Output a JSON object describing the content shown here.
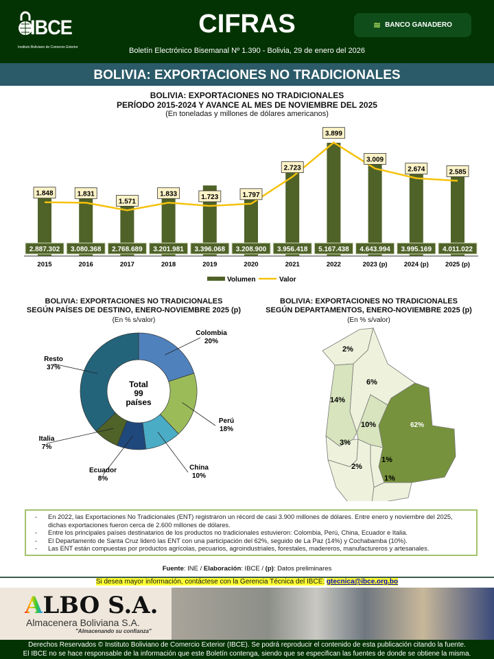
{
  "header": {
    "logo_text": "IBCE",
    "logo_subtitle": "Instituto Boliviano de Comercio Exterior",
    "title": "CIFRAS",
    "sponsor": "BANCO GANADERO",
    "bulletin": "Boletín Electrónico Bisemanal Nº 1.390 - Bolivia, 29 de enero del 2026"
  },
  "band_title": "BOLIVIA: EXPORTACIONES NO TRADICIONALES",
  "chart_data": [
    {
      "type": "bar+line",
      "title": "BOLIVIA: EXPORTACIONES NO TRADICIONALES",
      "subtitle": "PERÍODO 2015-2024 Y AVANCE AL MES DE NOVIEMBRE DEL 2025",
      "units": "(En toneladas y millones de dólares americanos)",
      "categories": [
        "2015",
        "2016",
        "2017",
        "2018",
        "2019",
        "2020",
        "2021",
        "2022",
        "2023 (p)",
        "2024 (p)",
        "2025 (p)"
      ],
      "series": [
        {
          "name": "Volumen",
          "type": "bar",
          "color": "#4f6228",
          "values": [
            2887302,
            3080368,
            2768689,
            3201981,
            3396068,
            3208900,
            3956418,
            5167438,
            4643994,
            3995169,
            4011022
          ],
          "labels": [
            "2.887.302",
            "3.080.368",
            "2.768.689",
            "3.201.981",
            "3.396.068",
            "3.208.900",
            "3.956.418",
            "5.167.438",
            "4.643.994",
            "3.995.169",
            "4.011.022"
          ]
        },
        {
          "name": "Valor",
          "type": "line",
          "color": "#f5c20c",
          "values": [
            1848,
            1831,
            1571,
            1833,
            1723,
            1797,
            2723,
            3899,
            3009,
            2674,
            2585
          ],
          "labels": [
            "1.848",
            "1.831",
            "1.571",
            "1.833",
            "1.723",
            "1.797",
            "2.723",
            "3.899",
            "3.009",
            "2.674",
            "2.585"
          ]
        }
      ],
      "legend": "bottom",
      "grid": false
    },
    {
      "type": "pie",
      "title": "BOLIVIA: EXPORTACIONES NO TRADICIONALES",
      "subtitle": "SEGÚN PAÍSES DE DESTINO, ENERO-NOVIEMBRE 2025 (p)",
      "units": "(En % s/valor)",
      "center_lines": [
        "Total",
        "99",
        "países"
      ],
      "slices": [
        {
          "label": "Colombia",
          "value": 20,
          "text": "20%",
          "color": "#4f81bd"
        },
        {
          "label": "Perú",
          "value": 18,
          "text": "18%",
          "color": "#9bbb59"
        },
        {
          "label": "China",
          "value": 10,
          "text": "10%",
          "color": "#4bacc6"
        },
        {
          "label": "Ecuador",
          "value": 8,
          "text": "8%",
          "color": "#1f497d"
        },
        {
          "label": "Italia",
          "value": 7,
          "text": "7%",
          "color": "#4f6228"
        },
        {
          "label": "Resto",
          "value": 37,
          "text": "37%",
          "color": "#23647a"
        }
      ]
    },
    {
      "type": "map",
      "title": "BOLIVIA: EXPORTACIONES NO TRADICIONALES",
      "subtitle": "SEGÚN DEPARTAMENTOS, ENERO-NOVIEMBRE 2025 (p)",
      "units": "(En %  s/valor)",
      "regions": [
        {
          "value": 2,
          "text": "2%"
        },
        {
          "value": 6,
          "text": "6%"
        },
        {
          "value": 14,
          "text": "14%"
        },
        {
          "value": 10,
          "text": "10%"
        },
        {
          "value": 62,
          "text": "62%"
        },
        {
          "value": 3,
          "text": "3%"
        },
        {
          "value": 1,
          "text": "1%"
        },
        {
          "value": 2,
          "text": "2%"
        },
        {
          "value": 1,
          "text": "1%"
        }
      ],
      "colors": {
        "low": "#eef2dc",
        "mid": "#d7e4bd",
        "high": "#76923c"
      }
    }
  ],
  "bullets": [
    "En 2022, las Exportaciones No Tradicionales (ENT) registraron un récord de casi 3.900 millones de dólares. Entre enero y noviembre del 2025, dichas exportaciones fueron cerca de 2.600 millones de dólares.",
    "Entre los principales países destinatarios de los productos no tradicionales estuvieron: Colombia, Perú, China, Ecuador e Italia.",
    "El Departamento de Santa Cruz lideró las ENT con una participación del 62%, seguido de La Paz (14%) y Cochabamba (10%).",
    "Las ENT están compuestas por productos agrícolas, pecuarios, agroindustriales, forestales, madereros, manufactureros y artesanales."
  ],
  "fuente": {
    "l1": "Fuente",
    "v1": ":  INE / ",
    "l2": "Elaboración",
    "v2": ": IBCE / ",
    "l3": "(p)",
    "v3": ": Datos preliminares"
  },
  "contact": {
    "text": "Si desea mayor información, contáctese con la Gerencia Técnica del IBCE:",
    "email": "gtecnica@ibce.org.bo"
  },
  "ad": {
    "brand_a": "A",
    "brand_rest": "LBO S.A.",
    "name": "Almacenera Boliviana S.A.",
    "slogan": "\"Almacenando su confianza\""
  },
  "footer": {
    "line1": "Derechos Reservados © Instituto Boliviano de Comercio Exterior (IBCE). Se podrá reproducir el contenido de esta publicación citando la fuente.",
    "line2": "El IBCE no se hace responsable de la información que este Boletín contenga, siendo que se especifican las fuentes de donde se obtiene la misma."
  }
}
